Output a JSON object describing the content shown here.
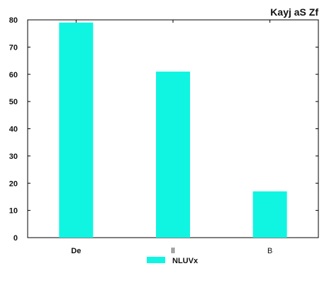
{
  "chart_data": {
    "type": "bar",
    "title": "Kayj aS Zf",
    "categories": [
      "De",
      "ll",
      "B"
    ],
    "category_bold": [
      true,
      false,
      false
    ],
    "series": [
      {
        "name": "NLUVx",
        "values": [
          79,
          61,
          17
        ],
        "color": "#10f5e1"
      }
    ],
    "ylim": [
      0,
      80
    ],
    "yticks": [
      0,
      10,
      20,
      30,
      40,
      50,
      60,
      70,
      80
    ],
    "legend_position": "bottom-center",
    "grid": false
  }
}
